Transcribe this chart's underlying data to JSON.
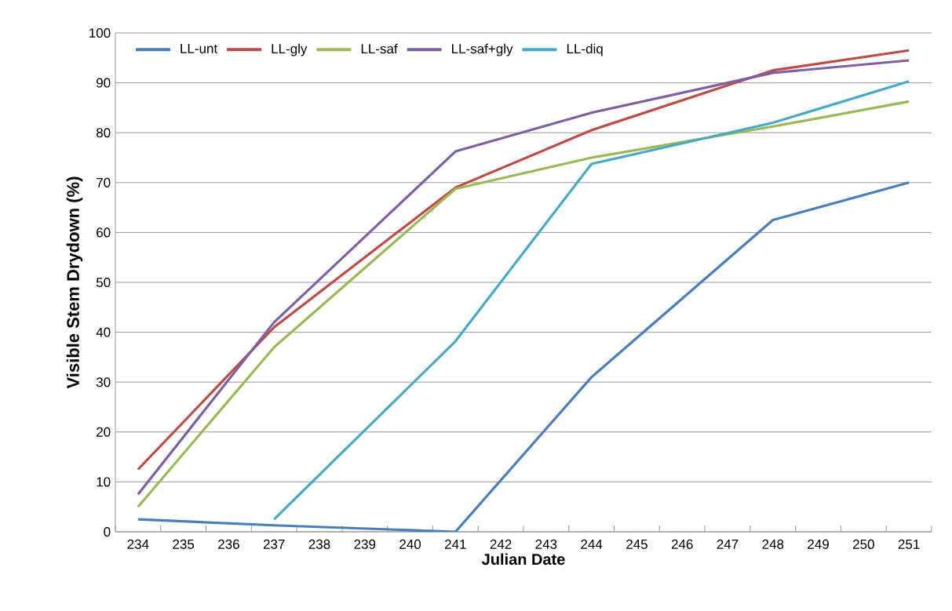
{
  "chart_data": {
    "type": "line",
    "xlabel": "Julian Date",
    "ylabel": "Visible  Stem Drydown (%)",
    "x": [
      234,
      237,
      241,
      244,
      248,
      251
    ],
    "series": [
      {
        "name": "LL-unt",
        "color": "#4a7ebb",
        "values": [
          2.5,
          1.3,
          0,
          31,
          62.5,
          70
        ]
      },
      {
        "name": "LL-gly",
        "color": "#be4b48",
        "values": [
          12.5,
          41,
          69,
          80.5,
          92.5,
          96.5
        ]
      },
      {
        "name": "LL-saf",
        "color": "#98b954",
        "values": [
          5,
          37,
          68.75,
          75,
          81.25,
          86.25
        ]
      },
      {
        "name": "LL-saf+gly",
        "color": "#7d60a0",
        "values": [
          7.5,
          42,
          76.25,
          84,
          92,
          94.5
        ]
      },
      {
        "name": "LL-diq",
        "color": "#46aac5",
        "values": [
          null,
          2.5,
          38.2,
          73.75,
          82,
          90.3
        ]
      }
    ],
    "xlim": [
      233.5,
      251.5
    ],
    "xticks": [
      234,
      235,
      236,
      237,
      238,
      239,
      240,
      241,
      242,
      243,
      244,
      245,
      246,
      247,
      248,
      249,
      250,
      251
    ],
    "ylim": [
      0,
      100
    ],
    "yticks": [
      0,
      10,
      20,
      30,
      40,
      50,
      60,
      70,
      80,
      90,
      100
    ],
    "grid": "y",
    "legend": "top left",
    "marker": "none",
    "line_style": "solid"
  }
}
